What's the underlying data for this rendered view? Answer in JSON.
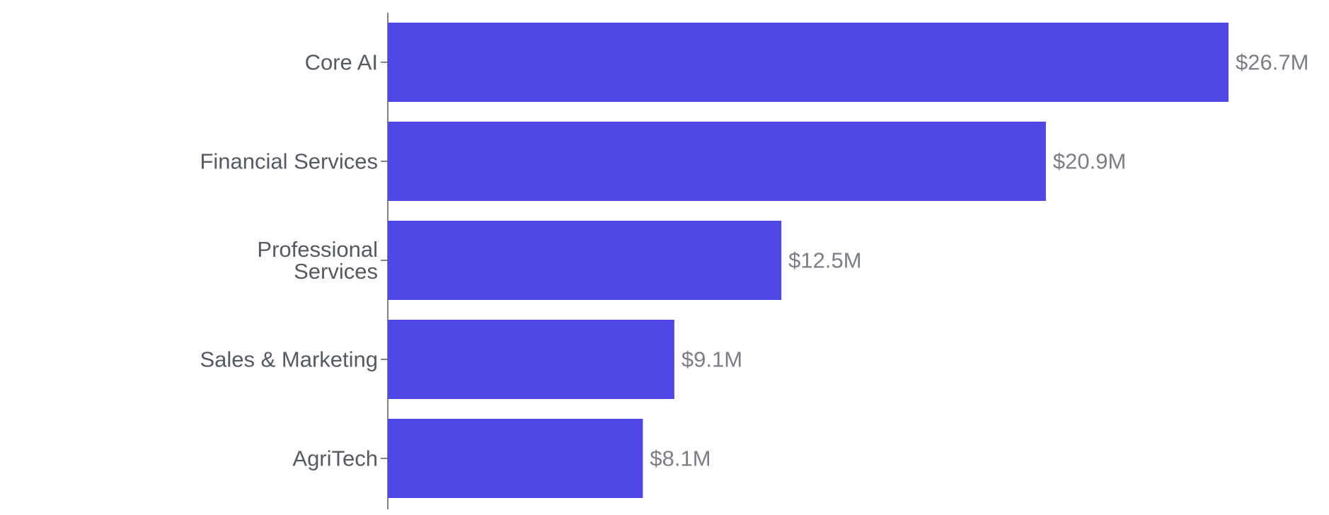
{
  "chart_data": {
    "type": "bar",
    "orientation": "horizontal",
    "categories": [
      [
        "Core AI"
      ],
      [
        "Financial Services"
      ],
      [
        "Professional",
        "Services"
      ],
      [
        "Sales & Marketing"
      ],
      [
        "AgriTech"
      ]
    ],
    "values": [
      26.7,
      20.9,
      12.5,
      9.1,
      8.1
    ],
    "value_labels": [
      "$26.7M",
      "$20.9M",
      "$12.5M",
      "$9.1M",
      "$8.1M"
    ],
    "title": "",
    "xlabel": "",
    "ylabel": "",
    "xlim": [
      0,
      26.7
    ],
    "grid": false,
    "legend": "none",
    "colors": {
      "bar": "#5048e5",
      "axis": "#555a60",
      "category_text": "#555a60",
      "value_text": "#7b7f85"
    }
  }
}
